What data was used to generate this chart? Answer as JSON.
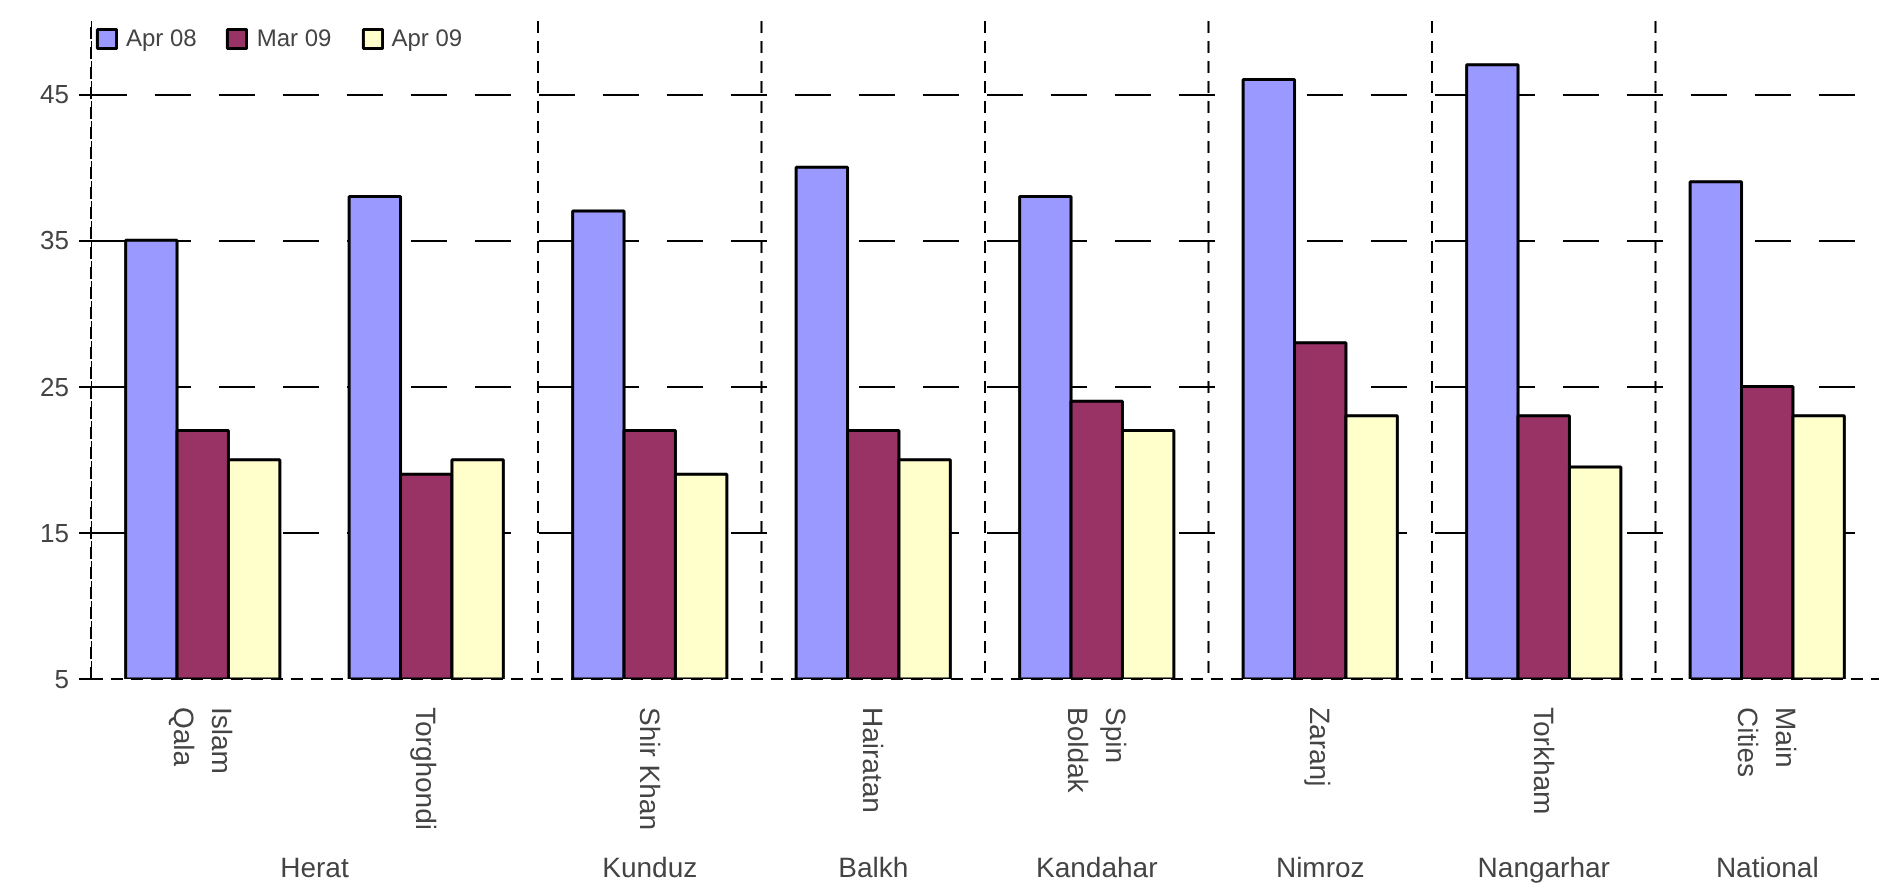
{
  "chart_data": {
    "type": "bar",
    "categories": [
      "Islam\nQala",
      "Torghondi",
      "Shir Khan",
      "Hairatan",
      "Spin\nBoldak",
      "Zaranj",
      "Torkham",
      "Main\nCities"
    ],
    "series": [
      {
        "name": "Apr 08",
        "color": "#9999ff",
        "values": [
          35,
          38,
          37,
          40,
          38,
          46,
          47,
          39
        ]
      },
      {
        "name": "Mar 09",
        "color": "#993366",
        "values": [
          22,
          19,
          22,
          22,
          24,
          28,
          23,
          25
        ]
      },
      {
        "name": "Apr 09",
        "color": "#ffffcc",
        "values": [
          20,
          20,
          19,
          20,
          22,
          23,
          19.5,
          23
        ]
      }
    ],
    "ylim": [
      5,
      50
    ],
    "yticks": [
      5,
      15,
      25,
      35,
      45
    ],
    "grid": "y",
    "legend": "top left",
    "annotations": [
      "Herat",
      "Kunduz",
      "Balkh",
      "Kandahar",
      "Nimroz",
      "Nangarhar",
      "National"
    ]
  }
}
